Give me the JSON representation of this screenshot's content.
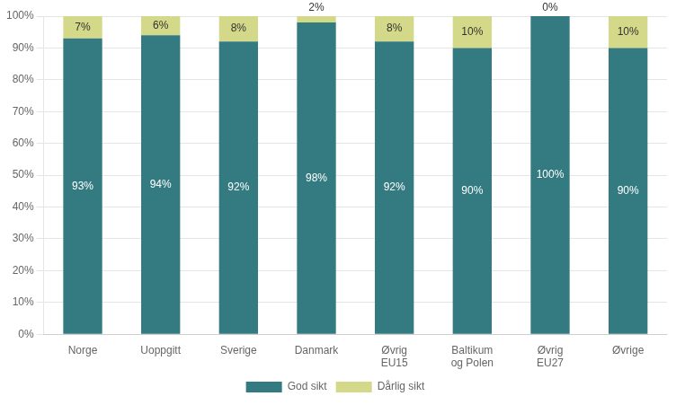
{
  "chart_data": {
    "type": "bar",
    "stacked": true,
    "categories": [
      "Norge",
      "Uoppgitt",
      "Sverige",
      "Danmark",
      "Øvrig\nEU15",
      "Baltikum\nog Polen",
      "Øvrig\nEU27",
      "Øvrige"
    ],
    "series": [
      {
        "name": "God sikt",
        "color": "#337b80",
        "values": [
          93,
          94,
          92,
          98,
          92,
          90,
          100,
          90
        ],
        "value_labels": [
          "93%",
          "94%",
          "92%",
          "98%",
          "92%",
          "90%",
          "100%",
          "90%"
        ]
      },
      {
        "name": "Dårlig sikt",
        "color": "#d4d98a",
        "values": [
          7,
          6,
          8,
          2,
          8,
          10,
          0,
          10
        ],
        "value_labels": [
          "7%",
          "6%",
          "8%",
          "2%",
          "8%",
          "10%",
          "0%",
          "10%"
        ]
      }
    ],
    "ylim": [
      0,
      100
    ],
    "yticks": [
      {
        "value": 0,
        "label": "0%"
      },
      {
        "value": 10,
        "label": "10%"
      },
      {
        "value": 20,
        "label": "20%"
      },
      {
        "value": 30,
        "label": "30%"
      },
      {
        "value": 40,
        "label": "40%"
      },
      {
        "value": 50,
        "label": "50%"
      },
      {
        "value": 60,
        "label": "60%"
      },
      {
        "value": 70,
        "label": "70%"
      },
      {
        "value": 80,
        "label": "80%"
      },
      {
        "value": 90,
        "label": "90%"
      },
      {
        "value": 100,
        "label": "100%"
      }
    ],
    "grid": true,
    "legend": "bottom",
    "data_labels": true
  }
}
